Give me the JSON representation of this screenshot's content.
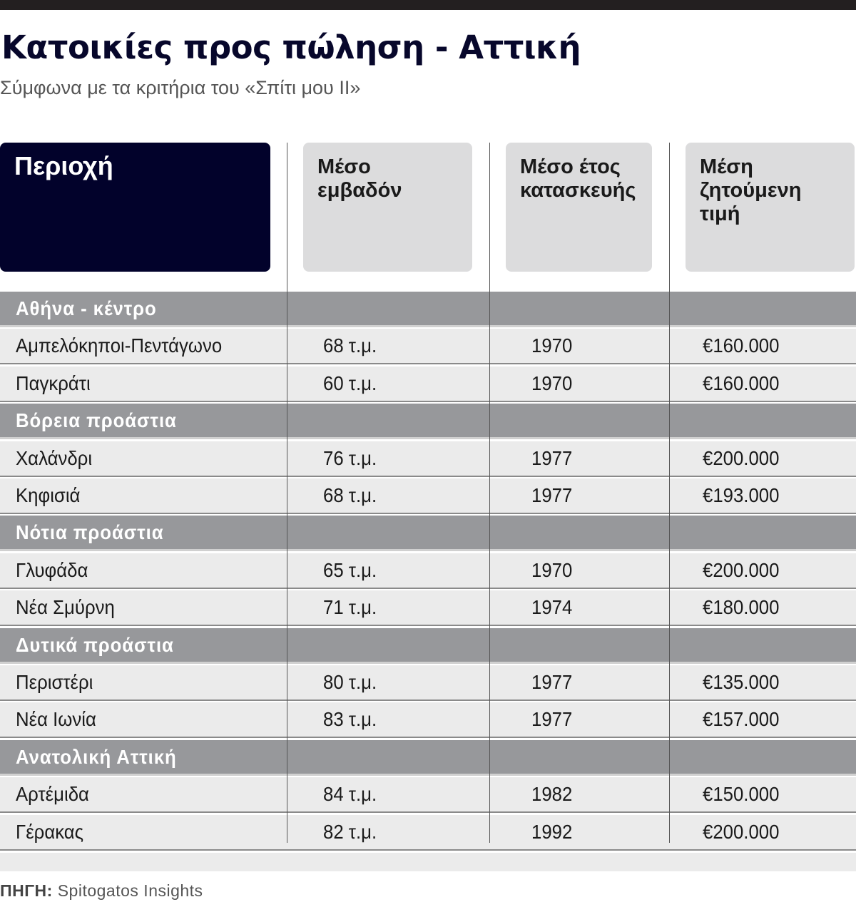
{
  "title": "Κατοικίες προς πώληση - Αττική",
  "subtitle": "Σύμφωνα με τα κριτήρια του «Σπίτι μου ΙΙ»",
  "source_label": "ΠΗΓΗ:",
  "source_text": "Spitogatos Insights",
  "colors": {
    "title": "#07072b",
    "header_first": "#02022b",
    "header_other": "#dcdcdd",
    "category_row": "#97989b",
    "data_row": "#ebebeb"
  },
  "chart_data": {
    "type": "table",
    "columns": [
      "Περιοχή",
      "Μέσο εμβαδόν",
      "Μέσο έτος κατασκευής",
      "Μέση ζητούμενη τιμή"
    ],
    "groups": [
      {
        "name": "Αθήνα - κέντρο",
        "rows": [
          [
            "Αμπελόκηποι-Πεντάγωνο",
            "68 τ.μ.",
            "1970",
            "€160.000"
          ],
          [
            "Παγκράτι",
            "60 τ.μ.",
            "1970",
            "€160.000"
          ]
        ]
      },
      {
        "name": "Βόρεια προάστια",
        "rows": [
          [
            "Χαλάνδρι",
            "76 τ.μ.",
            "1977",
            "€200.000"
          ],
          [
            "Κηφισιά",
            "68 τ.μ.",
            "1977",
            "€193.000"
          ]
        ]
      },
      {
        "name": "Νότια προάστια",
        "rows": [
          [
            "Γλυφάδα",
            "65 τ.μ.",
            "1970",
            "€200.000"
          ],
          [
            "Νέα Σμύρνη",
            "71 τ.μ.",
            "1974",
            "€180.000"
          ]
        ]
      },
      {
        "name": "Δυτικά προάστια",
        "rows": [
          [
            "Περιστέρι",
            "80 τ.μ.",
            "1977",
            "€135.000"
          ],
          [
            "Νέα Ιωνία",
            "83 τ.μ.",
            "1977",
            "€157.000"
          ]
        ]
      },
      {
        "name": "Ανατολική Αττική",
        "rows": [
          [
            "Αρτέμιδα",
            "84 τ.μ.",
            "1982",
            "€150.000"
          ],
          [
            "Γέρακας",
            "82 τ.μ.",
            "1992",
            "€200.000"
          ]
        ]
      }
    ]
  }
}
